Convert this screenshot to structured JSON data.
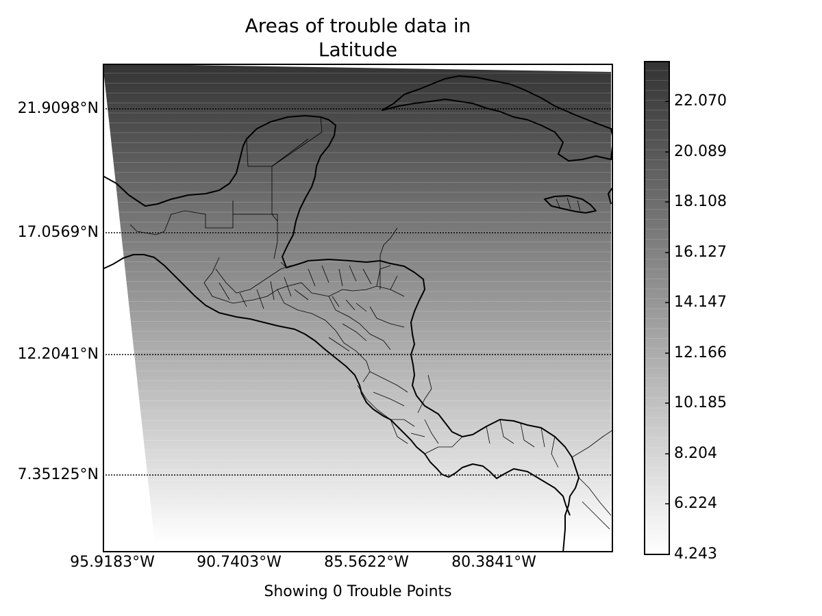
{
  "title_lines": [
    "Areas of trouble data in",
    "Latitude"
  ],
  "xlabel": "Showing 0 Trouble Points",
  "latitude_labels": [
    "21.9098°N",
    "17.0569°N",
    "12.2041°N",
    "7.35125°N"
  ],
  "longitude_labels": [
    "95.9183°W",
    "90.7403°W",
    "85.5622°W",
    "80.3841°W"
  ],
  "colorbar": {
    "tick_labels": [
      "22.070",
      "20.089",
      "18.108",
      "16.127",
      "14.147",
      "12.166",
      "10.185",
      "8.204",
      "6.224",
      "4.243"
    ],
    "color_min": "#ffffff",
    "color_max": "#333333"
  },
  "trouble_points": [],
  "colors": {
    "coastline": "#000000",
    "field_top": "#333333",
    "field_bottom": "#ffffff"
  }
}
